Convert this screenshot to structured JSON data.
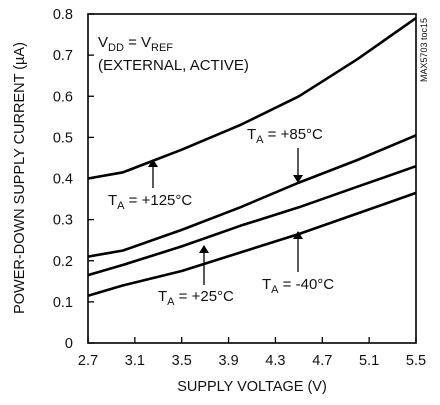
{
  "chart_data": {
    "type": "line",
    "title": "",
    "xlabel": "SUPPLY VOLTAGE (V)",
    "ylabel": "POWER-DOWN SUPPLY CURRENT (µA)",
    "xlim": [
      2.7,
      5.5
    ],
    "ylim": [
      0,
      0.8
    ],
    "x_ticks": [
      "2.7",
      "3.1",
      "3.5",
      "3.9",
      "4.3",
      "4.7",
      "5.1",
      "5.5"
    ],
    "y_ticks": [
      "0",
      "0.1",
      "0.2",
      "0.3",
      "0.4",
      "0.5",
      "0.6",
      "0.7",
      "0.8"
    ],
    "grid": false,
    "condition": {
      "line1_main": "V",
      "line1_sub1": "DD",
      "line1_mid": " = V",
      "line1_sub2": "REF",
      "line2": "(EXTERNAL, ACTIVE)"
    },
    "side_label": "MAX5703 toc15",
    "series": [
      {
        "name": "Tₐ = +125°C",
        "label_main": "T",
        "label_sub": "A",
        "label_rest": " = +125°C",
        "x": [
          2.7,
          3.0,
          3.5,
          4.0,
          4.5,
          5.0,
          5.5
        ],
        "y": [
          0.4,
          0.415,
          0.47,
          0.53,
          0.6,
          0.69,
          0.79
        ]
      },
      {
        "name": "Tₐ = +85°C",
        "label_main": "T",
        "label_sub": "A",
        "label_rest": " = +85°C",
        "x": [
          2.7,
          3.0,
          3.5,
          4.0,
          4.5,
          5.0,
          5.5
        ],
        "y": [
          0.21,
          0.225,
          0.275,
          0.33,
          0.39,
          0.445,
          0.505
        ]
      },
      {
        "name": "Tₐ = +25°C",
        "label_main": "T",
        "label_sub": "A",
        "label_rest": " = +25°C",
        "x": [
          2.7,
          3.0,
          3.5,
          4.0,
          4.5,
          5.0,
          5.5
        ],
        "y": [
          0.165,
          0.19,
          0.235,
          0.285,
          0.33,
          0.38,
          0.43
        ]
      },
      {
        "name": "Tₐ = -40°C",
        "label_main": "T",
        "label_sub": "A",
        "label_rest": " = -40°C",
        "x": [
          2.7,
          3.0,
          3.5,
          4.0,
          4.5,
          5.0,
          5.5
        ],
        "y": [
          0.115,
          0.14,
          0.175,
          0.22,
          0.265,
          0.315,
          0.365
        ]
      }
    ]
  }
}
